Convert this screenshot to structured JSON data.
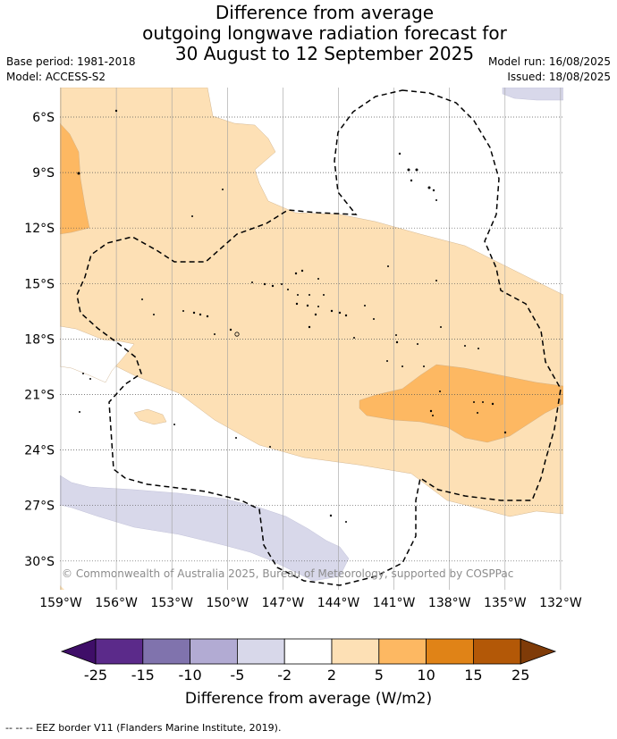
{
  "title": {
    "line1": "Difference from average",
    "line2": "outgoing longwave radiation forecast for",
    "line3": "30 August to 12 September 2025"
  },
  "meta": {
    "base_period": "Base period: 1981-2018",
    "model": "Model: ACCESS-S2",
    "model_run": "Model run: 16/08/2025",
    "issued": "Issued: 18/08/2025"
  },
  "map": {
    "lon_labels": [
      "159°W",
      "156°W",
      "153°W",
      "150°W",
      "147°W",
      "144°W",
      "141°W",
      "138°W",
      "135°W",
      "132°W"
    ],
    "lat_labels": [
      "6°S",
      "9°S",
      "12°S",
      "15°S",
      "18°S",
      "21°S",
      "24°S",
      "27°S",
      "30°S"
    ],
    "copyright": "© Commonwealth of Australia 2025, Bureau of Meteorology, supported by COSPPac"
  },
  "colorbar": {
    "ticks": [
      "-25",
      "-15",
      "-10",
      "-5",
      "-2",
      "2",
      "5",
      "10",
      "15",
      "25"
    ],
    "colors": [
      "#3f0e68",
      "#5b2a8a",
      "#8073ad",
      "#b2abd3",
      "#d8d8ea",
      "#ffffff",
      "#fde0b5",
      "#fdb862",
      "#e08317",
      "#b35807",
      "#7f3b08"
    ],
    "label": "Difference from average (W/m2)"
  },
  "footer": "-- -- -- EEZ border V11 (Flanders Marine Institute, 2019)."
}
